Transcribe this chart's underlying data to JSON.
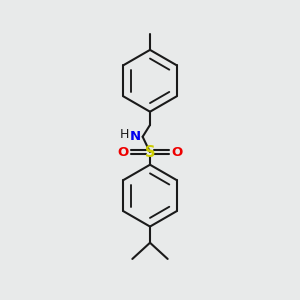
{
  "background_color": "#e8eaea",
  "line_color": "#1a1a1a",
  "N_color": "#0000ee",
  "S_color": "#cccc00",
  "O_color": "#ee0000",
  "line_width": 1.5,
  "figsize": [
    3.0,
    3.0
  ],
  "dpi": 100,
  "xlim": [
    0,
    1
  ],
  "ylim": [
    0,
    1
  ]
}
